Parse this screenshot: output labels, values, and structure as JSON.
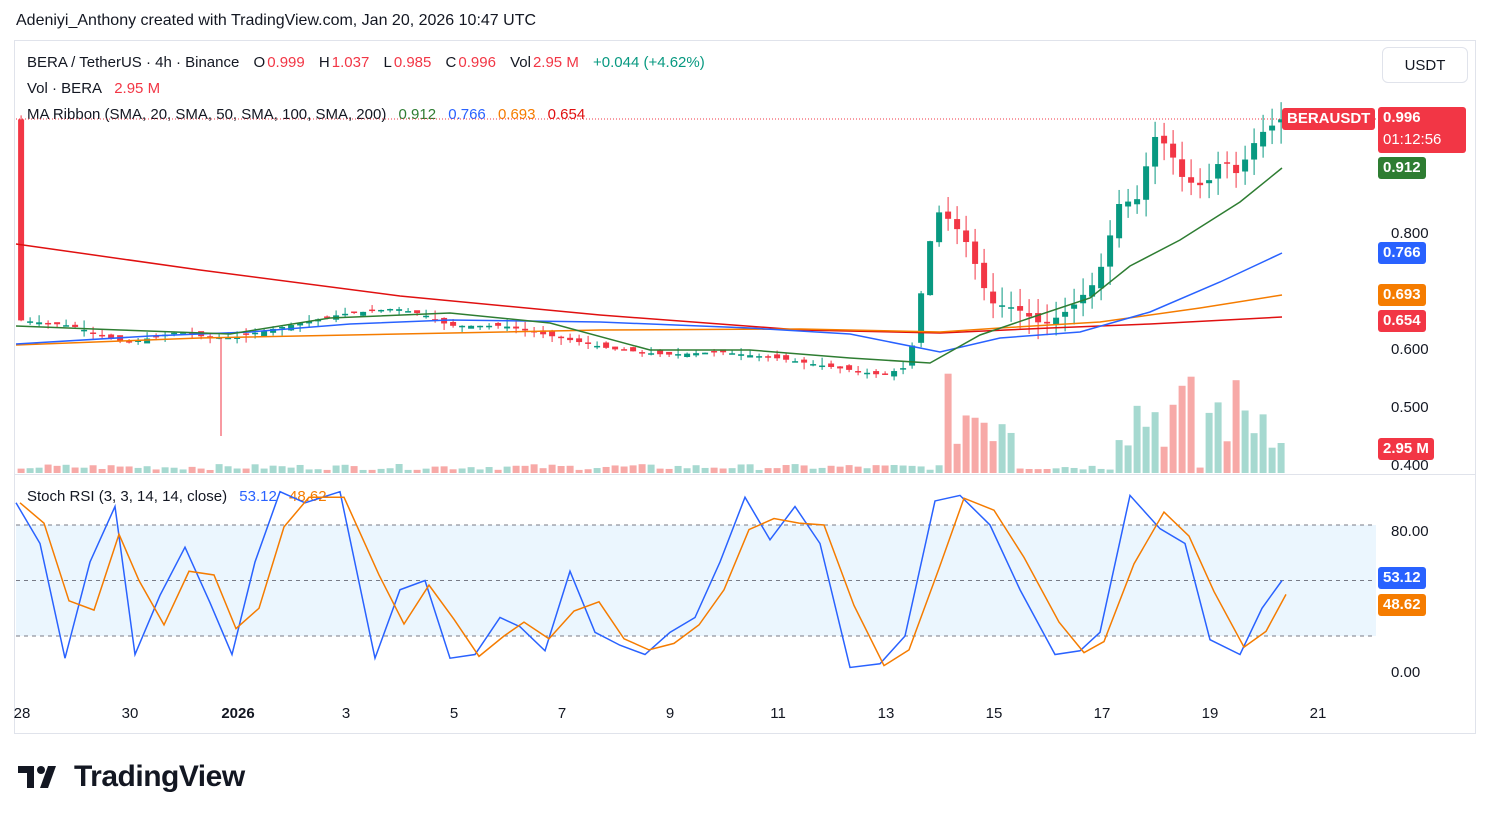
{
  "header": {
    "credit": "Adeniyi_Anthony created with TradingView.com, Jan 20, 2026 10:47 UTC"
  },
  "unit_button": "USDT",
  "legend": {
    "symbol": "BERA / TetherUS · 4h · Binance",
    "o_label": "O",
    "o_value": "0.999",
    "h_label": "H",
    "h_value": "1.037",
    "l_label": "L",
    "l_value": "0.985",
    "c_label": "C",
    "c_value": "0.996",
    "vol_label": "Vol",
    "vol_value": "2.95 M",
    "change": "+0.044 (+4.62%)",
    "vol_line_label": "Vol · BERA",
    "vol_line_value": "2.95 M",
    "ma_label": "MA Ribbon (SMA, 20, SMA, 50, SMA, 100, SMA, 200)",
    "ma20": "0.912",
    "ma50": "0.766",
    "ma100": "0.693",
    "ma200": "0.654",
    "stoch_label": "Stoch RSI (3, 3, 14, 14, close)",
    "stoch_k": "53.12",
    "stoch_d": "48.62"
  },
  "price_axis": [
    "0.800",
    "0.600",
    "0.500",
    "0.400"
  ],
  "stoch_axis": [
    "80.00",
    "0.00"
  ],
  "x_axis": [
    "28",
    "30",
    "2026",
    "3",
    "5",
    "7",
    "9",
    "11",
    "13",
    "15",
    "17",
    "19",
    "21"
  ],
  "tags": {
    "symbol": "BERAUSDT",
    "price": "0.996",
    "countdown": "01:12:56",
    "ma20": "0.912",
    "ma50": "0.766",
    "ma100": "0.693",
    "ma200": "0.654",
    "volume": "2.95 M",
    "stoch_k": "53.12",
    "stoch_d": "48.62"
  },
  "logo": "TradingView",
  "colors": {
    "up": "#089981",
    "down": "#f23645",
    "ma20": "#2e7d32",
    "ma50": "#2962ff",
    "ma100": "#f57c00",
    "ma200": "#e01010",
    "stoch_k": "#2962ff",
    "stoch_d": "#f57c00"
  },
  "chart_data": [
    {
      "type": "candlestick",
      "title": "BERA / TetherUS · 4h · Binance",
      "x_range": [
        "Dec 28, 2025",
        "Jan 21, 2026"
      ],
      "ylim": [
        0.38,
        1.1
      ],
      "key_points": [
        {
          "date": "Dec 28",
          "close": 0.65
        },
        {
          "date": "Dec 30",
          "close": 0.61
        },
        {
          "date": "Jan 1",
          "close": 0.62,
          "low_wick": 0.45
        },
        {
          "date": "Jan 4",
          "close": 0.67
        },
        {
          "date": "Jan 7",
          "close": 0.62
        },
        {
          "date": "Jan 9",
          "close": 0.59
        },
        {
          "date": "Jan 12",
          "close": 0.57
        },
        {
          "date": "Jan 13",
          "close": 0.56
        },
        {
          "date": "Jan 14",
          "high": 0.88,
          "close": 0.84
        },
        {
          "date": "Jan 15",
          "close": 0.68
        },
        {
          "date": "Jan 16",
          "close": 0.66
        },
        {
          "date": "Jan 17",
          "close": 0.85
        },
        {
          "date": "Jan 18",
          "high": 1.06,
          "close": 0.97
        },
        {
          "date": "Jan 19",
          "close": 0.89
        },
        {
          "date": "Jan 20",
          "open": 0.999,
          "high": 1.037,
          "low": 0.985,
          "close": 0.996
        }
      ],
      "moving_averages": {
        "SMA20": 0.912,
        "SMA50": 0.766,
        "SMA100": 0.693,
        "SMA200": 0.654
      }
    },
    {
      "type": "bar",
      "title": "Vol · BERA",
      "last_value": "2.95 M",
      "note": "volume low until Jan 14, spikes on Jan 14 and Jan 17-18"
    },
    {
      "type": "line",
      "title": "Stoch RSI (3, 3, 14, 14, close)",
      "ylim": [
        0,
        100
      ],
      "bands": [
        20,
        50,
        80
      ],
      "series": [
        {
          "name": "K",
          "last": 53.12
        },
        {
          "name": "D",
          "last": 48.62
        }
      ]
    }
  ]
}
